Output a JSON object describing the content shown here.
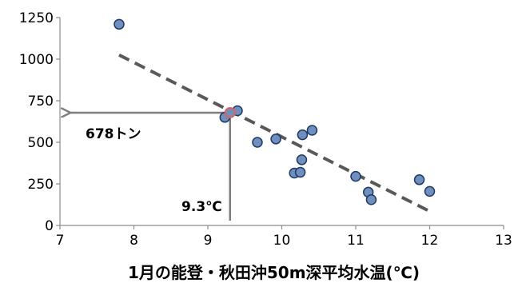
{
  "chart_data": {
    "type": "scatter",
    "title": "",
    "xlabel": "1月の能登・秋田沖50m深平均水温(℃)",
    "ylabel": "",
    "xlim": [
      7,
      13
    ],
    "ylim": [
      0,
      1250
    ],
    "x_ticks": [
      7,
      8,
      9,
      10,
      11,
      12,
      13
    ],
    "y_ticks": [
      0,
      250,
      500,
      750,
      1000,
      1250
    ],
    "grid": false,
    "legend": "none",
    "point_color": "#6f8fbf",
    "point_edge_color": "#1f3864",
    "highlight_color": "#e06060",
    "trend_color": "#595959",
    "annotation_color": "#7f7f7f",
    "points": [
      {
        "x": 7.8,
        "y": 1210
      },
      {
        "x": 9.23,
        "y": 650
      },
      {
        "x": 9.4,
        "y": 690
      },
      {
        "x": 9.67,
        "y": 500
      },
      {
        "x": 9.92,
        "y": 520
      },
      {
        "x": 10.17,
        "y": 315
      },
      {
        "x": 10.25,
        "y": 320
      },
      {
        "x": 10.27,
        "y": 395
      },
      {
        "x": 10.28,
        "y": 545
      },
      {
        "x": 10.41,
        "y": 572
      },
      {
        "x": 11.0,
        "y": 295
      },
      {
        "x": 11.17,
        "y": 200
      },
      {
        "x": 11.21,
        "y": 155
      },
      {
        "x": 11.86,
        "y": 275
      },
      {
        "x": 12.0,
        "y": 205
      }
    ],
    "highlight_point": {
      "x": 9.3,
      "y": 678
    },
    "trendline": {
      "x_start": 7.8,
      "y_start": 1025,
      "x_end": 12.0,
      "y_end": 85
    },
    "annotations": {
      "y_value_label": "678トン",
      "x_value_label": "9.3℃",
      "y_value": 678,
      "x_value": 9.3
    }
  }
}
